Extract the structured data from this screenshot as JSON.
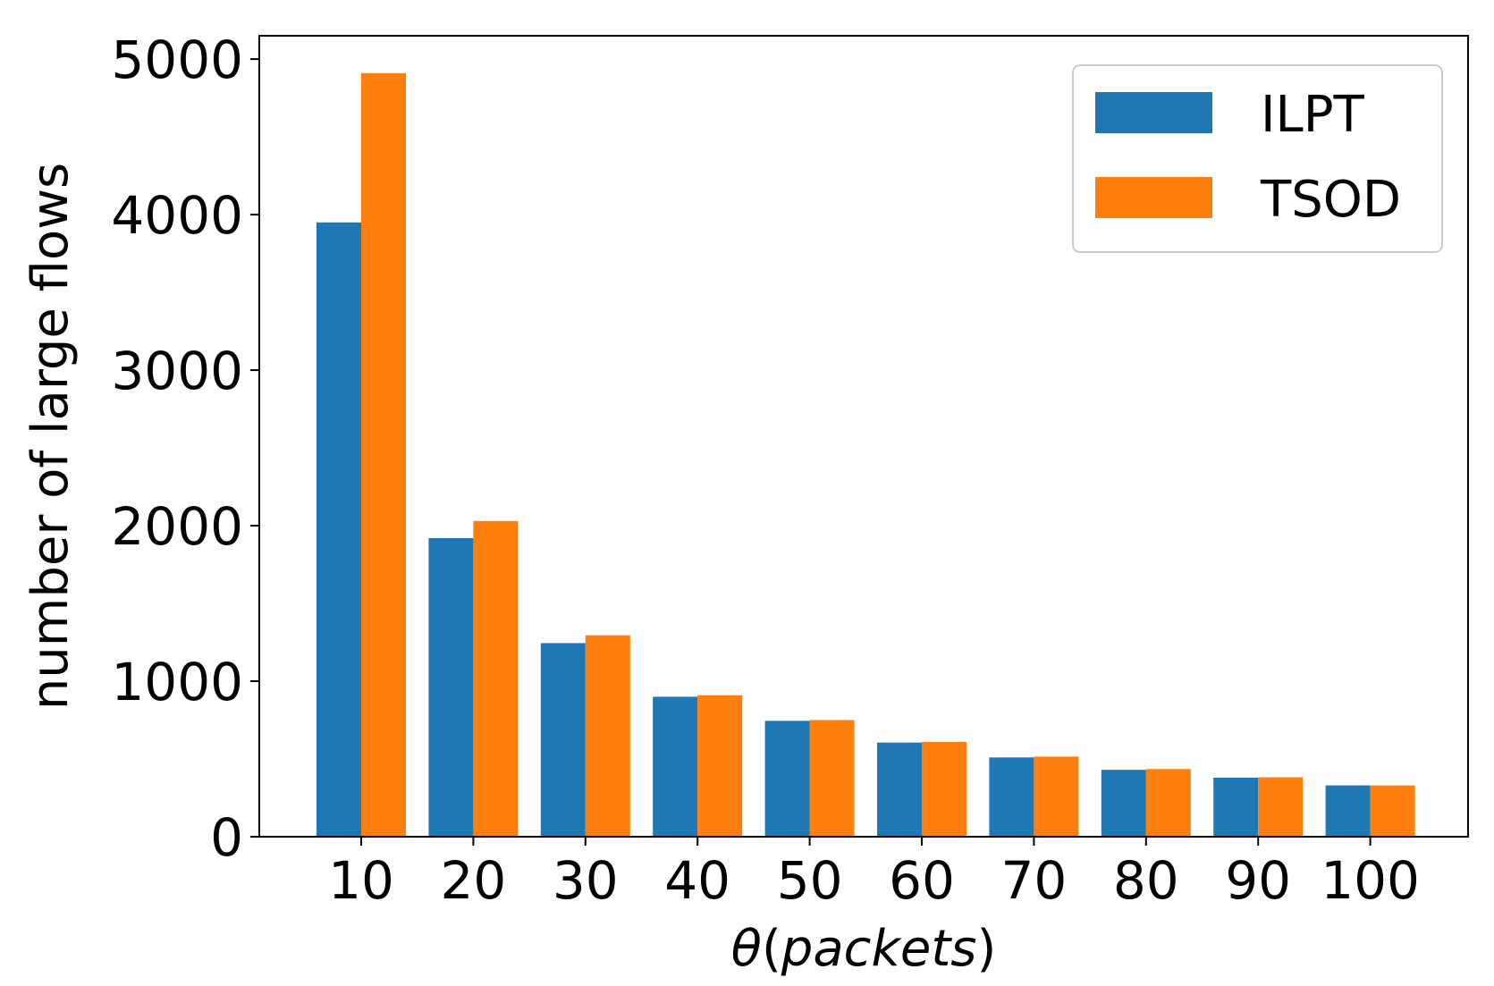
{
  "chart_data": {
    "type": "bar",
    "categories": [
      "10",
      "20",
      "30",
      "40",
      "50",
      "60",
      "70",
      "80",
      "90",
      "100"
    ],
    "series": [
      {
        "name": "ILPT",
        "values": [
          3950,
          1920,
          1245,
          900,
          745,
          605,
          510,
          430,
          380,
          330
        ],
        "color": "#1f77b4"
      },
      {
        "name": "TSOD",
        "values": [
          4910,
          2030,
          1295,
          910,
          750,
          610,
          515,
          435,
          382,
          330
        ],
        "color": "#ff7f0e"
      }
    ],
    "xlabel_symbol": "θ",
    "xlabel_open": "(",
    "xlabel_text": "packets",
    "xlabel_close": ")",
    "ylabel": "number of large flows",
    "yticks": [
      "0",
      "1000",
      "2000",
      "3000",
      "4000",
      "5000"
    ],
    "ylim": [
      0,
      5150
    ],
    "grid": false,
    "legend_position": "top-right"
  }
}
